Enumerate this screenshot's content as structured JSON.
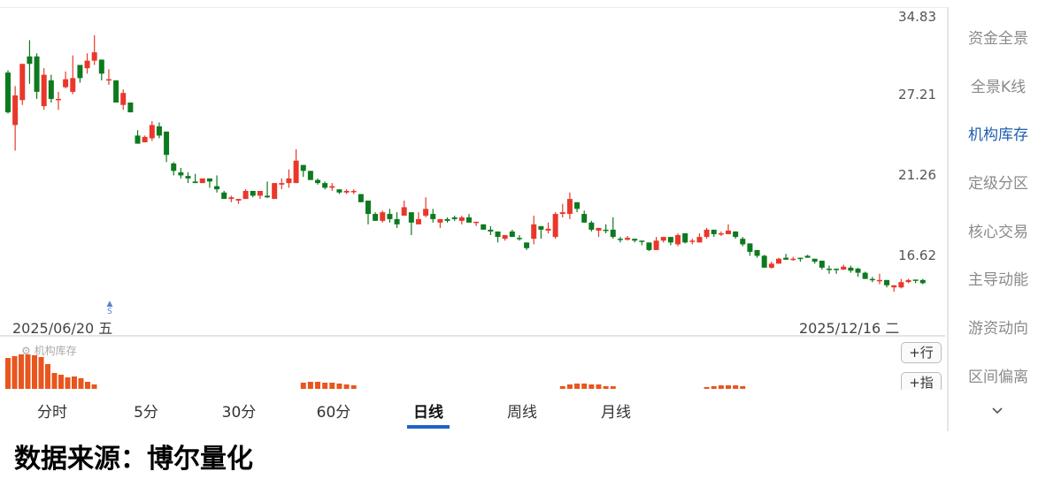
{
  "chart_data": {
    "type": "candlestick",
    "y_scale": "log",
    "y_ticks": [
      "34.83",
      "27.21",
      "21.26",
      "16.62"
    ],
    "x_start_label": "2025/06/20 五",
    "x_end_label": "2025/12/16 二",
    "colors": {
      "up": "#e8382b",
      "down": "#0d7a1f",
      "indicator": "#e8561e"
    },
    "ohlc_fields": [
      "open",
      "high",
      "low",
      "close"
    ],
    "ohlc": [
      [
        29.3,
        29.5,
        25.8,
        25.9
      ],
      [
        24.9,
        28.1,
        23.0,
        27.3
      ],
      [
        26.9,
        30.1,
        26.5,
        30.1
      ],
      [
        30.8,
        32.4,
        28.3,
        30.1
      ],
      [
        30.8,
        31.1,
        27.0,
        27.6
      ],
      [
        26.4,
        29.7,
        26.1,
        29.1
      ],
      [
        28.6,
        29.1,
        26.7,
        27.0
      ],
      [
        26.9,
        27.6,
        26.1,
        27.0
      ],
      [
        28.0,
        29.4,
        27.9,
        28.7
      ],
      [
        27.6,
        30.9,
        27.4,
        28.8
      ],
      [
        30.0,
        30.0,
        28.4,
        28.8
      ],
      [
        29.7,
        31.1,
        29.2,
        30.4
      ],
      [
        30.4,
        32.9,
        30.0,
        31.2
      ],
      [
        30.5,
        30.5,
        28.6,
        29.2
      ],
      [
        28.7,
        29.6,
        28.2,
        28.7
      ],
      [
        28.6,
        28.6,
        26.7,
        26.7
      ],
      [
        26.5,
        27.8,
        26.1,
        27.5
      ],
      [
        26.7,
        26.7,
        25.9,
        25.9
      ],
      [
        24.1,
        24.5,
        23.5,
        23.5
      ],
      [
        23.6,
        24.1,
        23.6,
        24.0
      ],
      [
        23.9,
        25.2,
        23.7,
        24.9
      ],
      [
        24.8,
        25.1,
        23.9,
        24.1
      ],
      [
        24.4,
        24.4,
        22.2,
        22.7
      ],
      [
        22.1,
        22.2,
        21.3,
        21.6
      ],
      [
        21.5,
        21.8,
        21.1,
        21.3
      ],
      [
        21.26,
        21.5,
        20.8,
        21.1
      ],
      [
        20.9,
        21.4,
        20.8,
        20.8
      ],
      [
        20.8,
        21.1,
        20.8,
        21.1
      ],
      [
        21.1,
        21.1,
        20.5,
        20.9
      ],
      [
        20.6,
        21.3,
        20.2,
        20.4
      ],
      [
        20.2,
        20.3,
        19.8,
        19.8
      ],
      [
        19.8,
        20.0,
        19.6,
        19.9
      ],
      [
        19.7,
        19.8,
        19.5,
        19.8
      ],
      [
        19.8,
        20.4,
        19.8,
        20.3
      ],
      [
        20.3,
        20.3,
        19.9,
        20.0
      ],
      [
        20.0,
        20.3,
        19.8,
        20.3
      ],
      [
        20.0,
        20.9,
        19.85,
        19.9
      ],
      [
        19.8,
        20.8,
        19.8,
        20.8
      ],
      [
        20.7,
        21.1,
        20.4,
        20.8
      ],
      [
        20.8,
        21.7,
        20.5,
        21.1
      ],
      [
        20.8,
        23.1,
        20.8,
        22.3
      ],
      [
        22.0,
        22.0,
        21.2,
        21.6
      ],
      [
        21.6,
        21.6,
        21.0,
        21.0
      ],
      [
        21.0,
        21.1,
        20.7,
        20.8
      ],
      [
        20.8,
        20.9,
        20.4,
        20.5
      ],
      [
        20.5,
        20.8,
        20.3,
        20.6
      ],
      [
        20.4,
        20.4,
        20.1,
        20.2
      ],
      [
        20.2,
        20.4,
        20.1,
        20.3
      ],
      [
        20.25,
        20.4,
        20.1,
        20.3
      ],
      [
        20.1,
        20.1,
        19.6,
        19.6
      ],
      [
        19.7,
        19.7,
        18.3,
        18.9
      ],
      [
        18.9,
        19.0,
        18.5,
        18.5
      ],
      [
        18.5,
        19.1,
        18.4,
        19.0
      ],
      [
        18.9,
        19.2,
        18.4,
        18.6
      ],
      [
        18.6,
        19.0,
        18.1,
        18.3
      ],
      [
        18.8,
        19.7,
        18.8,
        19.3
      ],
      [
        19.0,
        19.0,
        17.7,
        18.4
      ],
      [
        18.3,
        19.0,
        18.3,
        18.6
      ],
      [
        18.8,
        19.9,
        18.7,
        19.2
      ],
      [
        18.9,
        19.2,
        18.4,
        18.6
      ],
      [
        18.4,
        18.6,
        18.1,
        18.6
      ],
      [
        18.6,
        18.7,
        18.4,
        18.5
      ],
      [
        18.7,
        18.8,
        18.5,
        18.6
      ],
      [
        18.5,
        18.8,
        18.3,
        18.7
      ],
      [
        18.7,
        18.9,
        18.4,
        18.4
      ],
      [
        18.4,
        18.45,
        18.2,
        18.45
      ],
      [
        18.3,
        18.3,
        18.0,
        18.0
      ],
      [
        18.0,
        18.2,
        17.7,
        17.9
      ],
      [
        17.9,
        17.9,
        17.3,
        17.6
      ],
      [
        17.5,
        17.7,
        17.4,
        17.7
      ],
      [
        17.9,
        18.0,
        17.6,
        17.6
      ],
      [
        17.55,
        17.7,
        17.4,
        17.5
      ],
      [
        17.3,
        17.3,
        16.9,
        17.0
      ],
      [
        17.5,
        18.8,
        17.2,
        18.3
      ],
      [
        18.2,
        18.2,
        17.5,
        18.0
      ],
      [
        17.95,
        18.4,
        17.8,
        18.05
      ],
      [
        17.6,
        19.0,
        17.5,
        18.9
      ],
      [
        18.9,
        19.5,
        18.7,
        19.0
      ],
      [
        18.9,
        20.2,
        18.6,
        19.8
      ],
      [
        19.6,
        19.6,
        19.0,
        19.2
      ],
      [
        18.9,
        19.1,
        18.4,
        18.4
      ],
      [
        18.4,
        18.5,
        17.9,
        18.0
      ],
      [
        17.95,
        18.1,
        17.6,
        18.1
      ],
      [
        18.0,
        18.3,
        17.8,
        17.95
      ],
      [
        18.0,
        18.7,
        17.5,
        17.6
      ],
      [
        17.5,
        17.6,
        17.3,
        17.45
      ],
      [
        17.45,
        17.65,
        17.4,
        17.55
      ],
      [
        17.5,
        17.5,
        17.3,
        17.4
      ],
      [
        17.4,
        17.4,
        17.15,
        17.35
      ],
      [
        17.3,
        17.3,
        16.85,
        16.9
      ],
      [
        16.9,
        17.6,
        16.9,
        17.4
      ],
      [
        17.4,
        17.6,
        17.3,
        17.6
      ],
      [
        17.6,
        17.6,
        17.15,
        17.3
      ],
      [
        17.2,
        17.8,
        17.1,
        17.7
      ],
      [
        17.8,
        17.8,
        17.25,
        17.3
      ],
      [
        17.35,
        17.5,
        17.2,
        17.4
      ],
      [
        17.3,
        17.8,
        17.3,
        17.6
      ],
      [
        17.6,
        18.1,
        17.5,
        18.0
      ],
      [
        18.0,
        18.0,
        17.6,
        17.75
      ],
      [
        17.75,
        17.9,
        17.65,
        17.8
      ],
      [
        17.75,
        18.3,
        17.75,
        17.95
      ],
      [
        17.9,
        17.9,
        17.5,
        17.6
      ],
      [
        17.5,
        17.6,
        17.1,
        17.2
      ],
      [
        17.25,
        17.25,
        16.6,
        16.8
      ],
      [
        16.9,
        16.9,
        16.5,
        16.6
      ],
      [
        16.6,
        16.65,
        16.0,
        16.0
      ],
      [
        16.0,
        16.3,
        15.95,
        16.2
      ],
      [
        16.2,
        16.5,
        16.2,
        16.45
      ],
      [
        16.5,
        16.7,
        16.4,
        16.4
      ],
      [
        16.4,
        16.55,
        16.35,
        16.45
      ],
      [
        16.5,
        16.5,
        16.3,
        16.45
      ],
      [
        16.6,
        16.65,
        16.5,
        16.5
      ],
      [
        16.45,
        16.45,
        16.2,
        16.3
      ],
      [
        16.35,
        16.35,
        15.9,
        16.0
      ],
      [
        15.95,
        16.1,
        15.7,
        15.9
      ],
      [
        15.95,
        15.95,
        15.7,
        15.9
      ],
      [
        15.9,
        16.15,
        15.9,
        16.05
      ],
      [
        16.0,
        16.1,
        15.75,
        15.85
      ],
      [
        15.95,
        16.0,
        15.55,
        15.75
      ],
      [
        15.75,
        15.8,
        15.45,
        15.45
      ],
      [
        15.45,
        15.55,
        15.3,
        15.4
      ],
      [
        15.35,
        15.7,
        15.2,
        15.4
      ],
      [
        15.4,
        15.4,
        15.05,
        15.15
      ],
      [
        15.05,
        15.15,
        14.85,
        15.15
      ],
      [
        15.05,
        15.45,
        15.0,
        15.3
      ],
      [
        15.3,
        15.45,
        15.25,
        15.4
      ],
      [
        15.42,
        15.42,
        15.25,
        15.38
      ],
      [
        15.4,
        15.45,
        15.2,
        15.25
      ]
    ],
    "indicator": {
      "label": "机构库存",
      "bars": [
        {
          "start": 0,
          "values": [
            35,
            37,
            39,
            39,
            38,
            36,
            28,
            18,
            16,
            13,
            14,
            12,
            8,
            5
          ]
        },
        {
          "start": 41,
          "values": [
            7,
            8,
            8,
            7,
            7,
            6,
            5,
            4
          ]
        },
        {
          "start": 77,
          "values": [
            3,
            5,
            6,
            6,
            5,
            5,
            3,
            3
          ]
        },
        {
          "start": 97,
          "values": [
            2,
            3,
            4,
            4,
            4,
            3
          ]
        }
      ]
    },
    "signal_marker": {
      "symbol": "S",
      "candle_index": 14
    }
  },
  "indicator_buttons": [
    "+行",
    "+指"
  ],
  "tabs": [
    {
      "label": "分时"
    },
    {
      "label": "5分"
    },
    {
      "label": "30分"
    },
    {
      "label": "60分"
    },
    {
      "label": "日线",
      "active": true
    },
    {
      "label": "周线"
    },
    {
      "label": "月线"
    }
  ],
  "sidebar": {
    "items": [
      {
        "label": "资金全景"
      },
      {
        "label": "全景K线"
      },
      {
        "label": "机构库存",
        "active": true
      },
      {
        "label": "定级分区"
      },
      {
        "label": "核心交易"
      },
      {
        "label": "主导动能"
      },
      {
        "label": "游资动向"
      },
      {
        "label": "区间偏离"
      }
    ],
    "more_icon": "chevron-down-icon"
  },
  "source_text": "数据来源：博尔量化"
}
